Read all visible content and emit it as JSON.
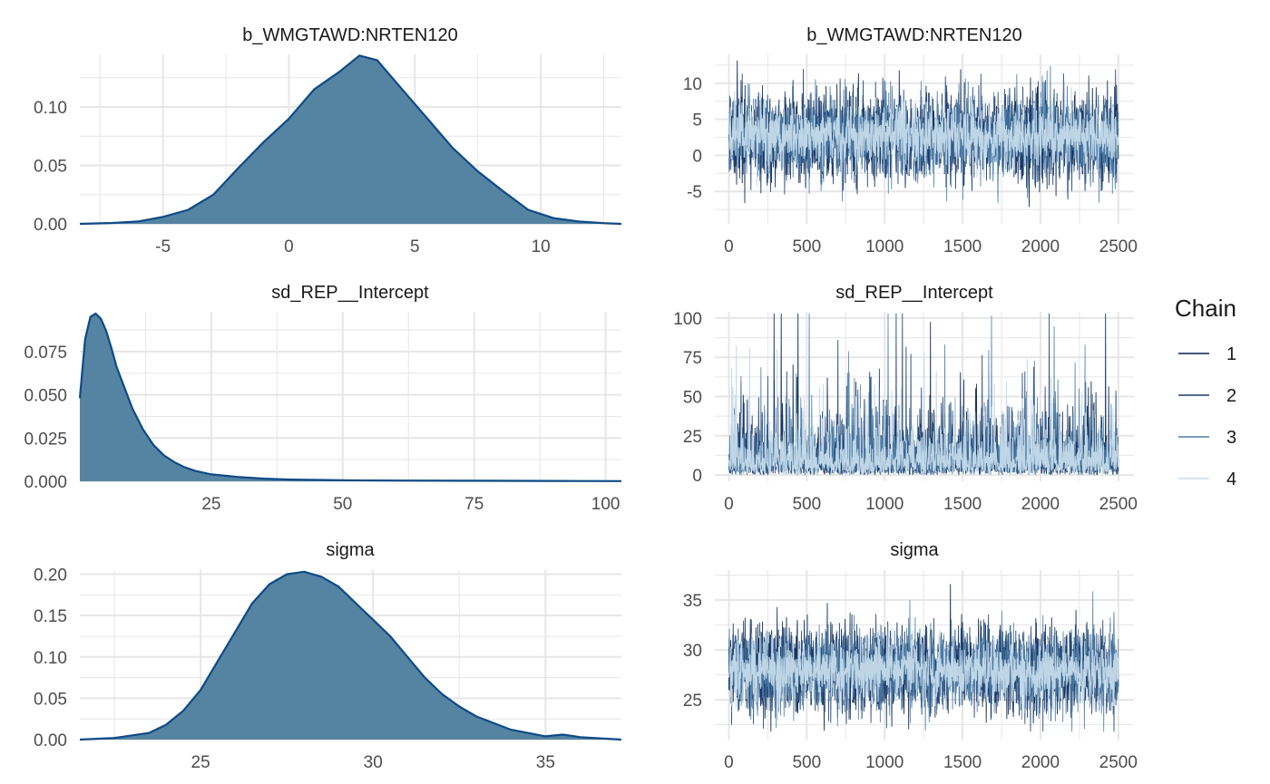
{
  "colors": {
    "density_fill": "#5584a2",
    "density_line": "#0e4a87",
    "grid": "#e6e6e6",
    "chains": [
      "#011f4b",
      "#1b3b6f",
      "#4d7ea8",
      "#c6dbea"
    ]
  },
  "legend": {
    "title": "Chain",
    "items": [
      "1",
      "2",
      "3",
      "4"
    ]
  },
  "chart_data": [
    {
      "type": "area",
      "title": "b_WMGTAWD:NRTEN120",
      "xlim": [
        -8.3,
        13.2
      ],
      "ylim": [
        0,
        0.145
      ],
      "x_ticks": [
        -5,
        0,
        5,
        10
      ],
      "y_ticks": [
        0.0,
        0.05,
        0.1
      ],
      "y_tick_labels": [
        "0.00",
        "0.05",
        "0.10"
      ],
      "x": [
        -8.3,
        -7,
        -6,
        -5,
        -4,
        -3,
        -2,
        -1,
        0,
        1,
        2,
        2.8,
        3.5,
        4.5,
        5.5,
        6.5,
        7.5,
        8.5,
        9.5,
        10.5,
        11.5,
        12.5,
        13.2
      ],
      "y": [
        0.0,
        0.0008,
        0.002,
        0.006,
        0.012,
        0.025,
        0.048,
        0.07,
        0.09,
        0.115,
        0.13,
        0.144,
        0.14,
        0.115,
        0.09,
        0.065,
        0.045,
        0.028,
        0.012,
        0.005,
        0.002,
        0.0006,
        0.0
      ]
    },
    {
      "type": "line",
      "title": "b_WMGTAWD:NRTEN120",
      "xlim": [
        -90,
        2600
      ],
      "ylim": [
        -9.5,
        14
      ],
      "x_ticks": [
        0,
        500,
        1000,
        1500,
        2000,
        2500
      ],
      "y_ticks": [
        -5,
        0,
        5,
        10
      ],
      "y_tick_labels": [
        "-5",
        "0",
        "5",
        "10"
      ],
      "n_iter": 2500,
      "center": 2.6,
      "spread": 3.0,
      "peak_max": 13.2,
      "peak_min": -8.2,
      "log_scale": false
    },
    {
      "type": "area",
      "title": "sd_REP__Intercept",
      "xlim": [
        0,
        103
      ],
      "ylim": [
        0,
        0.098
      ],
      "x_ticks": [
        25,
        50,
        75,
        100
      ],
      "y_ticks": [
        0.0,
        0.025,
        0.05,
        0.075
      ],
      "y_tick_labels": [
        "0.000",
        "0.025",
        "0.050",
        "0.075"
      ],
      "x": [
        0,
        1,
        2,
        3,
        4,
        5,
        6,
        7,
        8,
        10,
        12,
        14,
        16,
        18,
        20,
        22,
        25,
        30,
        35,
        40,
        50,
        60,
        75,
        90,
        103
      ],
      "y": [
        0.048,
        0.082,
        0.095,
        0.097,
        0.094,
        0.087,
        0.077,
        0.066,
        0.058,
        0.042,
        0.03,
        0.021,
        0.015,
        0.011,
        0.008,
        0.006,
        0.004,
        0.0025,
        0.0015,
        0.001,
        0.0006,
        0.0004,
        0.0003,
        0.0002,
        0.0001
      ]
    },
    {
      "type": "line",
      "title": "sd_REP__Intercept",
      "xlim": [
        -90,
        2600
      ],
      "ylim": [
        -4,
        104
      ],
      "x_ticks": [
        0,
        500,
        1000,
        1500,
        2000,
        2500
      ],
      "y_ticks": [
        0,
        25,
        50,
        75,
        100
      ],
      "y_tick_labels": [
        "0",
        "25",
        "50",
        "75",
        "100"
      ],
      "n_iter": 2500,
      "center": 11,
      "spread": 9,
      "peak_max": 103,
      "peak_min": 0,
      "log_scale": true
    },
    {
      "type": "area",
      "title": "sigma",
      "xlim": [
        21.5,
        37.2
      ],
      "ylim": [
        0,
        0.205
      ],
      "x_ticks": [
        25,
        30,
        35
      ],
      "y_ticks": [
        0.0,
        0.05,
        0.1,
        0.15,
        0.2
      ],
      "y_tick_labels": [
        "0.00",
        "0.05",
        "0.10",
        "0.15",
        "0.20"
      ],
      "x": [
        21.5,
        22.5,
        23.5,
        24,
        24.5,
        25,
        25.5,
        26,
        26.5,
        27,
        27.5,
        28,
        28.5,
        29,
        29.5,
        30,
        30.5,
        31,
        31.5,
        32,
        32.5,
        33,
        34,
        35,
        35.5,
        36,
        37.2
      ],
      "y": [
        0.0,
        0.002,
        0.008,
        0.018,
        0.035,
        0.06,
        0.095,
        0.13,
        0.165,
        0.188,
        0.2,
        0.203,
        0.197,
        0.185,
        0.165,
        0.145,
        0.125,
        0.1,
        0.075,
        0.055,
        0.04,
        0.028,
        0.012,
        0.004,
        0.006,
        0.003,
        0.0
      ]
    },
    {
      "type": "line",
      "title": "sigma",
      "xlim": [
        -90,
        2600
      ],
      "ylim": [
        21,
        38
      ],
      "x_ticks": [
        0,
        500,
        1000,
        1500,
        2000,
        2500
      ],
      "y_ticks": [
        25,
        30,
        35
      ],
      "y_tick_labels": [
        "25",
        "30",
        "35"
      ],
      "n_iter": 2500,
      "center": 28.0,
      "spread": 2.2,
      "peak_max": 37.3,
      "peak_min": 21.8,
      "log_scale": false
    }
  ]
}
